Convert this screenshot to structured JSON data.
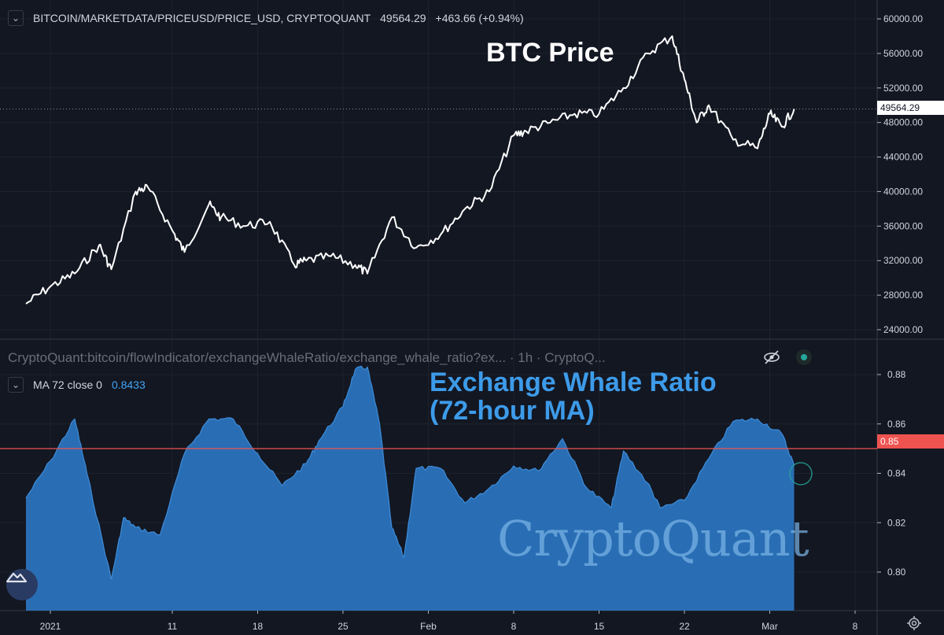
{
  "top_pane": {
    "symbol": "BITCOIN/MARKETDATA/PRICEUSD/PRICE_USD, CRYPTOQUANT",
    "last_value": "49564.29",
    "change": "+463.66 (+0.94%)",
    "current_price_label": "49564.29",
    "annotation": "BTC Price",
    "line_color": "#ffffff"
  },
  "bottom_pane": {
    "indicator_path": "CryptoQuant:bitcoin/flowIndicator/exchangeWhaleRatio/exchange_whale_ratio?ex... · 1h · CryptoQ...",
    "ma_label": "MA 72 close 0",
    "ma_value": "0.8433",
    "annotation_line1": "Exchange Whale Ratio",
    "annotation_line2": "(72-hour MA)",
    "threshold_label": "0.85",
    "fill_color": "#2a73bd",
    "threshold_color": "#ef5350"
  },
  "watermark": "CryptoQuant",
  "x_axis": {
    "ticks": [
      "2021",
      "11",
      "18",
      "25",
      "Feb",
      "8",
      "15",
      "22",
      "Mar",
      "8"
    ]
  },
  "chart_data": [
    {
      "type": "line",
      "title": "BTC Price",
      "y_ticks": [
        "60000.00",
        "56000.00",
        "52000.00",
        "48000.00",
        "44000.00",
        "40000.00",
        "36000.00",
        "32000.00",
        "28000.00",
        "24000.00"
      ],
      "ylim": [
        23000,
        61000
      ],
      "x": [
        "2020-12-30",
        "2021-01-01",
        "2021-01-03",
        "2021-01-05",
        "2021-01-06",
        "2021-01-08",
        "2021-01-09",
        "2021-01-11",
        "2021-01-12",
        "2021-01-14",
        "2021-01-15",
        "2021-01-17",
        "2021-01-19",
        "2021-01-21",
        "2021-01-22",
        "2021-01-24",
        "2021-01-26",
        "2021-01-27",
        "2021-01-29",
        "2021-01-31",
        "2021-02-02",
        "2021-02-04",
        "2021-02-06",
        "2021-02-08",
        "2021-02-09",
        "2021-02-11",
        "2021-02-13",
        "2021-02-15",
        "2021-02-17",
        "2021-02-19",
        "2021-02-21",
        "2021-02-22",
        "2021-02-23",
        "2021-02-24",
        "2021-02-26",
        "2021-02-28",
        "2021-03-01",
        "2021-03-02",
        "2021-03-03"
      ],
      "y": [
        27000,
        29000,
        30500,
        33800,
        31000,
        40000,
        40500,
        35500,
        33000,
        38500,
        37000,
        36000,
        36500,
        31500,
        32000,
        32500,
        31500,
        30500,
        37000,
        33500,
        35000,
        38000,
        40000,
        46500,
        47000,
        48000,
        49000,
        49000,
        52000,
        56000,
        58000,
        53000,
        48000,
        50000,
        46000,
        45000,
        49000,
        47500,
        49564.29
      ]
    },
    {
      "type": "area",
      "title": "Exchange Whale Ratio (72-hour MA)",
      "series_label": "MA 72 close 0",
      "y_ticks": [
        "0.88",
        "0.86",
        "0.84",
        "0.82",
        "0.80"
      ],
      "ylim": [
        0.786,
        0.8922
      ],
      "threshold": 0.85,
      "x": [
        "2020-12-30",
        "2021-01-01",
        "2021-01-03",
        "2021-01-04",
        "2021-01-06",
        "2021-01-07",
        "2021-01-08",
        "2021-01-10",
        "2021-01-12",
        "2021-01-14",
        "2021-01-16",
        "2021-01-18",
        "2021-01-20",
        "2021-01-22",
        "2021-01-23",
        "2021-01-25",
        "2021-01-26",
        "2021-01-27",
        "2021-01-28",
        "2021-01-29",
        "2021-01-30",
        "2021-01-31",
        "2021-02-02",
        "2021-02-04",
        "2021-02-06",
        "2021-02-08",
        "2021-02-10",
        "2021-02-12",
        "2021-02-14",
        "2021-02-16",
        "2021-02-17",
        "2021-02-19",
        "2021-02-20",
        "2021-02-22",
        "2021-02-24",
        "2021-02-26",
        "2021-02-28",
        "2021-03-02",
        "2021-03-03"
      ],
      "y": [
        0.83,
        0.845,
        0.862,
        0.84,
        0.797,
        0.822,
        0.818,
        0.815,
        0.848,
        0.862,
        0.862,
        0.848,
        0.835,
        0.844,
        0.853,
        0.867,
        0.882,
        0.883,
        0.86,
        0.818,
        0.806,
        0.842,
        0.842,
        0.828,
        0.834,
        0.843,
        0.841,
        0.854,
        0.834,
        0.826,
        0.849,
        0.836,
        0.826,
        0.829,
        0.846,
        0.861,
        0.862,
        0.856,
        0.8433
      ]
    }
  ]
}
